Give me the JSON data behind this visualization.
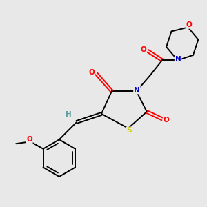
{
  "background_color": "#e8e8e8",
  "atom_colors": {
    "C": "#000000",
    "N": "#0000cd",
    "O": "#ff0000",
    "S": "#cccc00",
    "H": "#5f9ea0"
  },
  "bond_color": "#000000",
  "fig_size": [
    3.0,
    3.0
  ],
  "dpi": 100
}
